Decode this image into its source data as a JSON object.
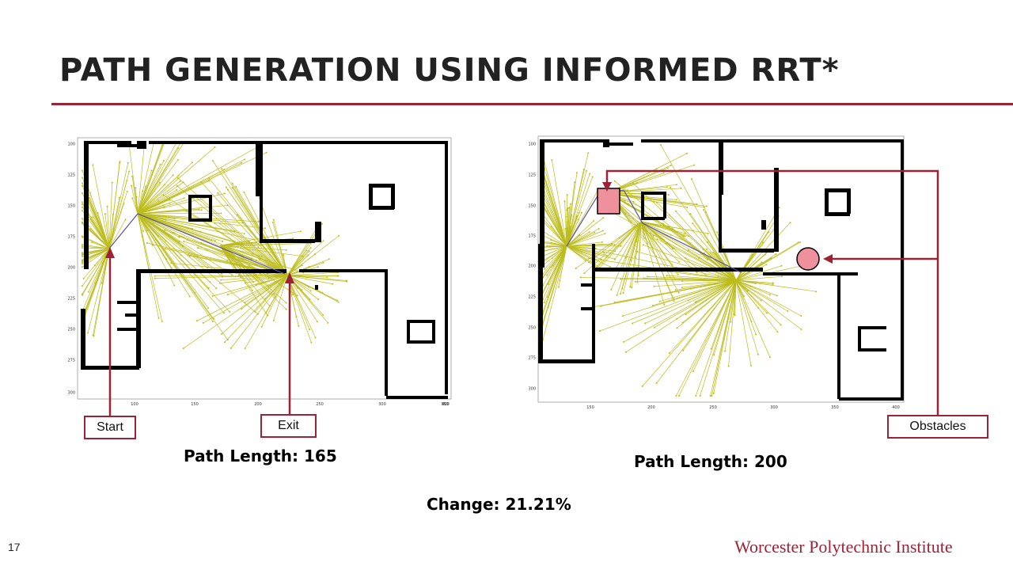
{
  "slide": {
    "title": "PATH GENERATION USING INFORMED RRT*",
    "number": "17",
    "footer": "Worcester Polytechnic Institute",
    "accent_color": "#9b2335",
    "tree_color": "#bcbc1c",
    "obstacle_fill": "#ee919c"
  },
  "left_panel": {
    "caption": "Path Length: 165",
    "callouts": {
      "start": "Start",
      "exit": "Exit"
    },
    "y_ticks": [
      "100",
      "125",
      "150",
      "175",
      "200",
      "225",
      "250",
      "275",
      "300"
    ],
    "x_ticks": [
      "100",
      "150",
      "200",
      "250",
      "300",
      "350",
      "400"
    ]
  },
  "right_panel": {
    "caption": "Path Length: 200",
    "callouts": {
      "obstacles": "Obstacles"
    },
    "y_ticks": [
      "100",
      "125",
      "150",
      "175",
      "200",
      "225",
      "250",
      "275",
      "300"
    ],
    "x_ticks": [
      "150",
      "200",
      "250",
      "300",
      "350",
      "400"
    ]
  },
  "change": "Change: 21.21%"
}
